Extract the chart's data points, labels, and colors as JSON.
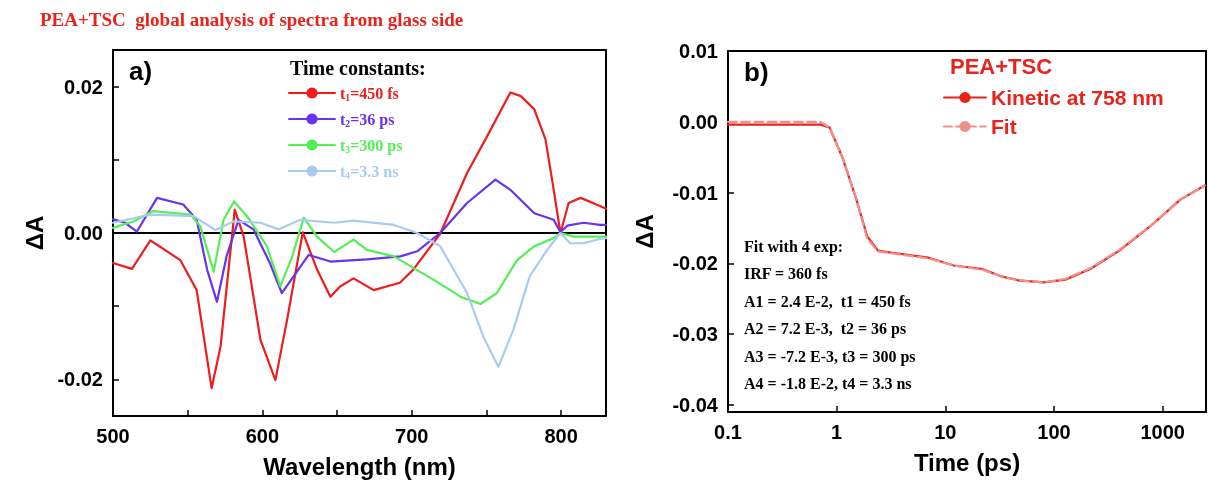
{
  "chart_data": [
    {
      "type": "line",
      "title": "PEA+TSC  global analysis of spectra from glass side",
      "xlabel": "Wavelength (nm)",
      "ylabel": "ΔA",
      "legend_title": "Time constants:",
      "annotations": [
        "a)"
      ],
      "xlim": [
        500,
        830
      ],
      "xticks": [
        500,
        {
          "value": 550,
          "label": null
        },
        600,
        {
          "value": 650,
          "label": null
        },
        700,
        {
          "value": 750,
          "label": null
        },
        800
      ],
      "ylim": [
        -0.025,
        0.025
      ],
      "yticks": [
        {
          "value": -0.02,
          "label": "-0.02"
        },
        {
          "value": -0.01,
          "label": null
        },
        {
          "value": 0,
          "label": "0.00"
        },
        {
          "value": 0.01,
          "label": null
        },
        {
          "value": 0.02,
          "label": "0.02"
        }
      ],
      "ref_lines": [
        {
          "axis": "y",
          "value": 0,
          "color": "#000000"
        }
      ],
      "grid": false,
      "legend": "top",
      "marker": "none",
      "line_style": "solid",
      "series": [
        {
          "name": "t$_{1}$=450 fs",
          "color": "#ee1c1c",
          "x": [
            500,
            512.7,
            525,
            545,
            556,
            566,
            572,
            581.5,
            587.5,
            598.7,
            608.7,
            616.5,
            627,
            636.6,
            645.5,
            652,
            661,
            674.5,
            692,
            701,
            719,
            737,
            750.4,
            766,
            773,
            782,
            789.5,
            795,
            799.5,
            805,
            813,
            826,
            830
          ],
          "values": [
            -0.0041,
            -0.0049,
            -0.001,
            -0.0037,
            -0.0078,
            -0.0212,
            -0.0155,
            0.0032,
            -0.0005,
            -0.0146,
            -0.0201,
            -0.0119,
            0.0001,
            -0.005,
            -0.0087,
            -0.0073,
            -0.0062,
            -0.0078,
            -0.0068,
            -0.005,
            -0.0001,
            0.0082,
            0.0132,
            0.0192,
            0.0187,
            0.0169,
            0.0128,
            0.0059,
            0,
            0.0041,
            0.0048,
            0.0037,
            0.0033
          ]
        },
        {
          "name": "t$_{2}$=36 ps",
          "color": "#6633ee",
          "x": [
            500,
            508,
            516,
            529.5,
            547,
            556,
            563,
            569.6,
            576,
            584,
            594,
            605,
            613,
            621,
            631,
            645.5,
            670,
            692.4,
            703.6,
            719,
            737,
            756,
            766,
            782,
            795,
            799.5,
            804,
            815,
            826,
            830
          ],
          "values": [
            0.0019,
            0.0014,
            0.0002,
            0.0048,
            0.0039,
            0.0018,
            -0.005,
            -0.0094,
            -0.0032,
            0.0018,
            0.0005,
            -0.0041,
            -0.0082,
            -0.0059,
            -0.003,
            -0.0039,
            -0.0036,
            -0.0032,
            -0.0025,
            0,
            0.0041,
            0.0073,
            0.0059,
            0.0027,
            0.0018,
            0.0001,
            0.001,
            0.0014,
            0.0011,
            0.0011
          ]
        },
        {
          "name": "t$_{3}$=300 ps",
          "color": "#55ee55",
          "x": [
            500,
            514,
            527,
            552,
            558.5,
            567.4,
            574,
            581,
            589.7,
            603,
            612,
            620,
            627.7,
            636.6,
            648,
            661,
            670,
            688,
            714.7,
            732.6,
            746,
            757,
            770.5,
            782,
            795,
            799.5,
            808.5,
            826,
            830
          ],
          "values": [
            0.0007,
            0.0016,
            0.003,
            0.0025,
            0.0009,
            -0.0053,
            0.0018,
            0.0043,
            0.0023,
            -0.0018,
            -0.0073,
            -0.0032,
            0.0021,
            -0.0005,
            -0.0026,
            -0.0009,
            -0.0023,
            -0.0032,
            -0.0064,
            -0.0087,
            -0.0097,
            -0.0082,
            -0.0037,
            -0.0018,
            -0.0007,
            0,
            -0.0005,
            -0.0005,
            -0.0005
          ]
        },
        {
          "name": "t$_{4}$=3.3 ns",
          "color": "#a8ccf0",
          "x": [
            500,
            525,
            554,
            568.5,
            581,
            598.7,
            611,
            625.4,
            648,
            661,
            688,
            703.6,
            719,
            737,
            748,
            758,
            768,
            779,
            790.6,
            799.5,
            806,
            815,
            826,
            830
          ],
          "values": [
            0.0014,
            0.0025,
            0.0023,
            0.0004,
            0.0016,
            0.0014,
            0.0005,
            0.0018,
            0.0014,
            0.0017,
            0.0011,
            0,
            -0.0018,
            -0.0082,
            -0.0142,
            -0.0183,
            -0.0132,
            -0.0059,
            -0.0023,
            0,
            -0.0014,
            -0.0014,
            -0.0008,
            -0.0007
          ]
        }
      ]
    },
    {
      "type": "line",
      "xlabel": "Time (ps)",
      "ylabel": "ΔA",
      "legend_title": "PEA+TSC",
      "log": "x",
      "annotations": [
        "b)",
        "Fit with 4 exp:",
        "IRF = 360 fs",
        "A1 = 2.4 E-2,  t1 = 450 fs",
        "A2 = 7.2 E-3,  t2 = 36 ps",
        "A3 = -7.2 E-3, t3 = 300 ps",
        "A4 = -1.8 E-2, t4 = 3.3 ns"
      ],
      "xlim": [
        0.1,
        2500
      ],
      "xticks": [
        0.1,
        1,
        10,
        100,
        1000
      ],
      "ylim": [
        -0.041,
        0.01
      ],
      "yticks": [
        0.01,
        {
          "value": 0,
          "label": "0.00"
        },
        -0.01,
        -0.02,
        -0.03,
        -0.04
      ],
      "grid": false,
      "legend": "top right",
      "marker": "none",
      "series": [
        {
          "name": "Kinetic at 758 nm",
          "color": "#e8231c",
          "line_style": "solid",
          "x": [
            0.1,
            0.71,
            0.86,
            1.12,
            1.52,
            1.91,
            2.4,
            3.26,
            7,
            11.9,
            21.9,
            32,
            47,
            80,
            127,
            215,
            398,
            790,
            1450,
            2430
          ],
          "values": [
            -0.0004,
            -0.0004,
            -0.0008,
            -0.0049,
            -0.011,
            -0.0162,
            -0.0182,
            -0.0185,
            -0.0192,
            -0.0203,
            -0.0208,
            -0.0218,
            -0.0224,
            -0.0227,
            -0.0223,
            -0.0208,
            -0.0182,
            -0.0146,
            -0.011,
            -0.009
          ]
        },
        {
          "name": "Fit",
          "color": "#f0908a",
          "line_style": "dashed",
          "x": [
            0.1,
            0.7,
            0.86,
            1.12,
            1.52,
            1.91,
            2.4,
            3.26,
            7,
            11.9,
            21.9,
            32,
            47,
            80,
            127,
            215,
            398,
            790,
            1450,
            2430
          ],
          "values": [
            0,
            0,
            -0.0008,
            -0.0049,
            -0.011,
            -0.0165,
            -0.0183,
            -0.0186,
            -0.0193,
            -0.0203,
            -0.0209,
            -0.0218,
            -0.0224,
            -0.0227,
            -0.0222,
            -0.0207,
            -0.0181,
            -0.0146,
            -0.011,
            -0.009
          ]
        }
      ]
    }
  ]
}
